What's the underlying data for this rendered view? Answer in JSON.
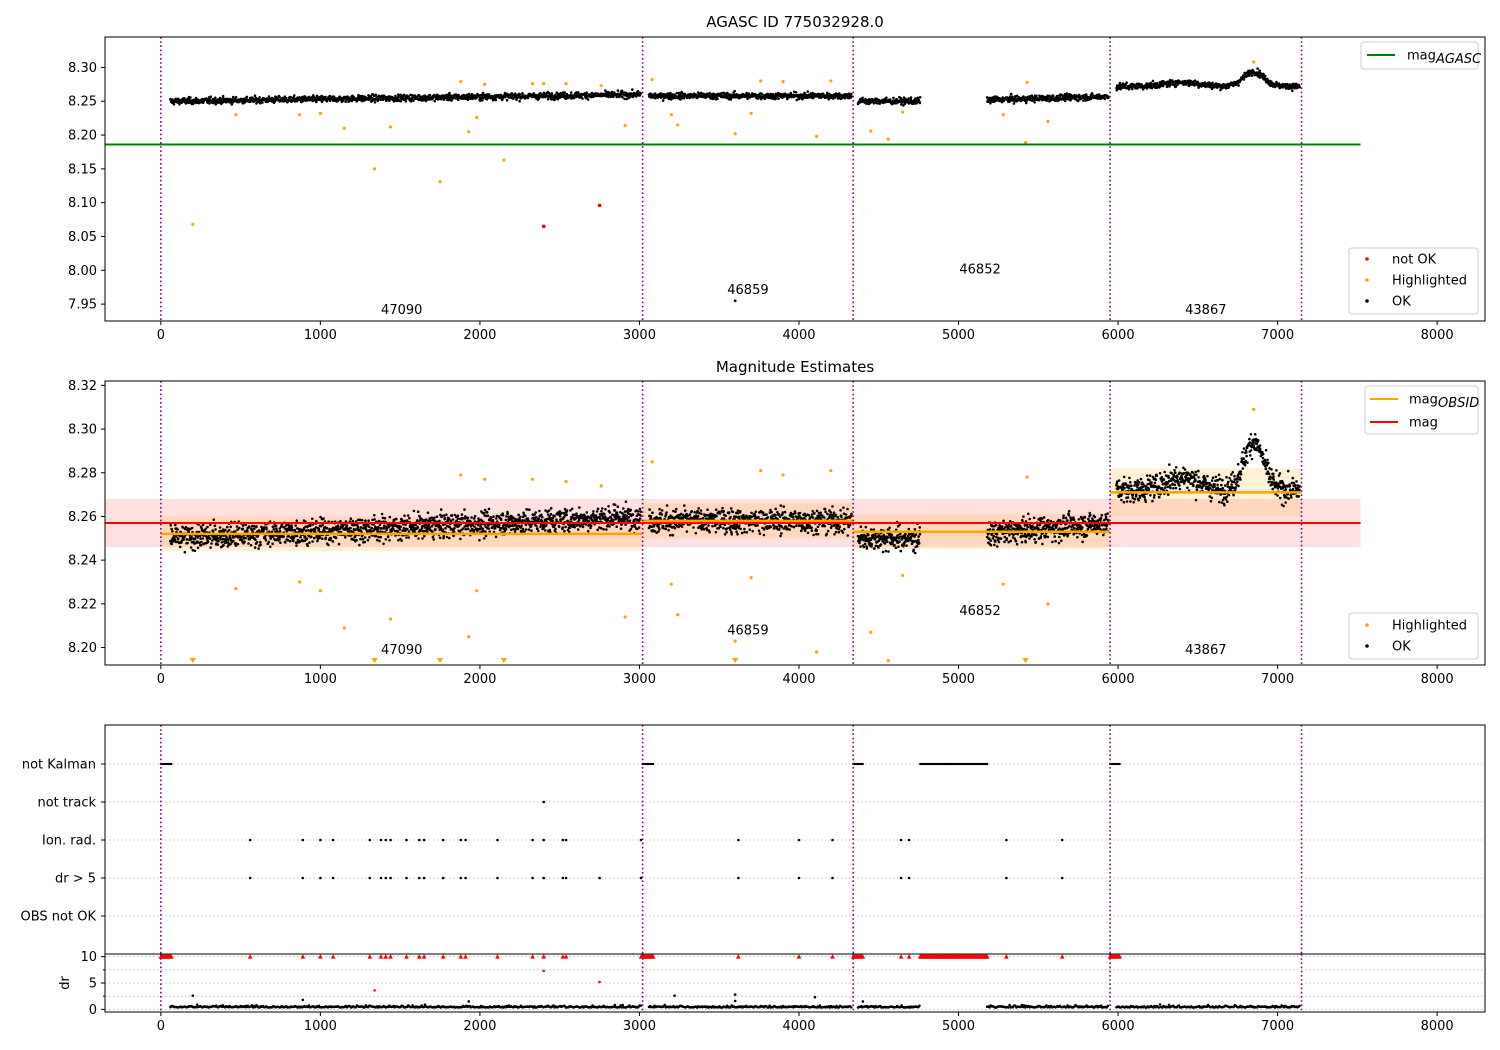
{
  "chart_data": [
    {
      "type": "scatter",
      "title": "AGASC ID 775032928.0",
      "xlim": [
        -350,
        8300
      ],
      "ylim": [
        7.925,
        8.345
      ],
      "xticks": [
        0,
        1000,
        2000,
        3000,
        4000,
        5000,
        6000,
        7000,
        8000
      ],
      "yticks": [
        7.95,
        8.0,
        8.05,
        8.1,
        8.15,
        8.2,
        8.25,
        8.3
      ],
      "grid": false,
      "obsid_boundaries": [
        0,
        3020,
        4340,
        5950,
        7150
      ],
      "obsid_labels": [
        {
          "label": "47090",
          "x": 1510,
          "y": 7.935
        },
        {
          "label": "46859",
          "x": 3680,
          "y": 7.965
        },
        {
          "label": "46852",
          "x": 5135,
          "y": 7.995
        },
        {
          "label": "43867",
          "x": 6550,
          "y": 7.935
        }
      ],
      "segments": [
        {
          "start": 60,
          "end": 3010,
          "base": 8.25,
          "slope": 0.01,
          "noise": 0.006
        },
        {
          "start": 3060,
          "end": 4330,
          "base": 8.258,
          "slope": 0.0,
          "noise": 0.006
        },
        {
          "start": 4370,
          "end": 4760,
          "base": 8.25,
          "slope": 0.0,
          "noise": 0.006
        },
        {
          "start": 5180,
          "end": 5940,
          "base": 8.252,
          "slope": 0.005,
          "noise": 0.006
        },
        {
          "start": 5990,
          "end": 7140,
          "base": 8.272,
          "slope": 0.0,
          "noise": 0.006
        }
      ],
      "hlines": [
        {
          "name": "mag_AGASC",
          "y": 8.186,
          "x0": -350,
          "x1": 7520,
          "color": "#008000"
        }
      ],
      "highlighted": [
        [
          200,
          8.068
        ],
        [
          470,
          8.23
        ],
        [
          870,
          8.23
        ],
        [
          1000,
          8.232
        ],
        [
          1150,
          8.21
        ],
        [
          1340,
          8.15
        ],
        [
          1440,
          8.212
        ],
        [
          1750,
          8.131
        ],
        [
          1880,
          8.279
        ],
        [
          1930,
          8.205
        ],
        [
          1980,
          8.226
        ],
        [
          2030,
          8.275
        ],
        [
          2150,
          8.163
        ],
        [
          2330,
          8.276
        ],
        [
          2400,
          8.276
        ],
        [
          2540,
          8.276
        ],
        [
          2760,
          8.273
        ],
        [
          2910,
          8.214
        ],
        [
          3080,
          8.282
        ],
        [
          3200,
          8.23
        ],
        [
          3240,
          8.215
        ],
        [
          3600,
          8.202
        ],
        [
          3700,
          8.232
        ],
        [
          3760,
          8.28
        ],
        [
          3900,
          8.279
        ],
        [
          4110,
          8.198
        ],
        [
          4200,
          8.28
        ],
        [
          4450,
          8.206
        ],
        [
          4560,
          8.194
        ],
        [
          4650,
          8.234
        ],
        [
          5280,
          8.23
        ],
        [
          5420,
          8.189
        ],
        [
          5430,
          8.278
        ],
        [
          5560,
          8.22
        ],
        [
          6850,
          8.308
        ]
      ],
      "not_ok": [
        [
          2400,
          8.065
        ],
        [
          2750,
          8.096
        ]
      ],
      "ok_extra": [
        [
          3600,
          7.955
        ]
      ],
      "legend_top": [
        {
          "label": "mag",
          "sub": "AGASC",
          "color": "#008000"
        }
      ],
      "legend_bottom": [
        {
          "label": "not OK",
          "color": "#ff0000"
        },
        {
          "label": "Highlighted",
          "color": "#ffa500"
        },
        {
          "label": "OK",
          "color": "#000000"
        }
      ]
    },
    {
      "type": "scatter",
      "title": "Magnitude Estimates",
      "xlim": [
        -350,
        8300
      ],
      "ylim": [
        8.192,
        8.322
      ],
      "xticks": [
        0,
        1000,
        2000,
        3000,
        4000,
        5000,
        6000,
        7000,
        8000
      ],
      "yticks": [
        8.2,
        8.22,
        8.24,
        8.26,
        8.28,
        8.3,
        8.32
      ],
      "grid": false,
      "obsid_boundaries": [
        0,
        3020,
        4340,
        5950,
        7150
      ],
      "obsid_labels": [
        {
          "label": "47090",
          "x": 1510,
          "y": 8.197
        },
        {
          "label": "46859",
          "x": 3680,
          "y": 8.206
        },
        {
          "label": "46852",
          "x": 5135,
          "y": 8.215
        },
        {
          "label": "43867",
          "x": 6550,
          "y": 8.197
        }
      ],
      "segments": [
        {
          "start": 60,
          "end": 3010,
          "base": 8.25,
          "slope": 0.01,
          "noise": 0.006
        },
        {
          "start": 3060,
          "end": 4330,
          "base": 8.258,
          "slope": 0.0,
          "noise": 0.006
        },
        {
          "start": 4370,
          "end": 4760,
          "base": 8.25,
          "slope": 0.0,
          "noise": 0.006
        },
        {
          "start": 5180,
          "end": 5940,
          "base": 8.252,
          "slope": 0.005,
          "noise": 0.006
        },
        {
          "start": 5990,
          "end": 7140,
          "base": 8.272,
          "slope": 0.0,
          "noise": 0.006
        }
      ],
      "mag_band": {
        "name": "mag",
        "y": 8.257,
        "lo": 8.246,
        "hi": 8.268,
        "x0": -350,
        "x1": 7520,
        "color": "#ff0000"
      },
      "obsid_mag": [
        {
          "x0": 0,
          "x1": 3020,
          "y": 8.252,
          "lo": 8.244,
          "hi": 8.26
        },
        {
          "x0": 3020,
          "x1": 4340,
          "y": 8.258,
          "lo": 8.25,
          "hi": 8.266
        },
        {
          "x0": 4340,
          "x1": 5950,
          "y": 8.253,
          "lo": 8.245,
          "hi": 8.261
        },
        {
          "x0": 5950,
          "x1": 7150,
          "y": 8.271,
          "lo": 8.26,
          "hi": 8.282
        }
      ],
      "highlighted": [
        [
          470,
          8.227
        ],
        [
          870,
          8.23
        ],
        [
          1000,
          8.226
        ],
        [
          1150,
          8.209
        ],
        [
          1440,
          8.213
        ],
        [
          1880,
          8.279
        ],
        [
          1930,
          8.205
        ],
        [
          1980,
          8.226
        ],
        [
          2030,
          8.277
        ],
        [
          2330,
          8.277
        ],
        [
          2540,
          8.276
        ],
        [
          2760,
          8.274
        ],
        [
          2910,
          8.214
        ],
        [
          3080,
          8.285
        ],
        [
          3200,
          8.229
        ],
        [
          3240,
          8.215
        ],
        [
          3600,
          8.203
        ],
        [
          3700,
          8.232
        ],
        [
          3760,
          8.281
        ],
        [
          3900,
          8.279
        ],
        [
          4110,
          8.198
        ],
        [
          4200,
          8.281
        ],
        [
          4450,
          8.207
        ],
        [
          4560,
          8.194
        ],
        [
          4650,
          8.233
        ],
        [
          5280,
          8.229
        ],
        [
          5430,
          8.278
        ],
        [
          5560,
          8.22
        ],
        [
          6850,
          8.309
        ]
      ],
      "below_axis": [
        200,
        1340,
        1750,
        2150,
        3600,
        5420
      ],
      "legend_top": [
        {
          "label": "mag",
          "sub": "OBSID",
          "color": "#ffa500"
        },
        {
          "label": "mag",
          "sub": "",
          "color": "#ff0000"
        }
      ],
      "legend_bottom": [
        {
          "label": "Highlighted",
          "color": "#ffa500"
        },
        {
          "label": "OK",
          "color": "#000000"
        }
      ]
    },
    {
      "type": "scatter",
      "xlim": [
        -350,
        8300
      ],
      "categories": [
        "not Kalman",
        "not track",
        "Ion. rad.",
        "dr > 5",
        "OBS not OK"
      ],
      "grid": true,
      "obsid_boundaries": [
        0,
        3020,
        4340,
        5950,
        7150
      ],
      "flag_points": {
        "not Kalman": {
          "ranges": [
            [
              0,
              70
            ],
            [
              3020,
              3090
            ],
            [
              4340,
              4400
            ],
            [
              4760,
              5180
            ],
            [
              5950,
              6010
            ]
          ],
          "points": []
        },
        "not track": {
          "ranges": [],
          "points": [
            2400
          ]
        },
        "Ion. rad.": {
          "ranges": [],
          "points": [
            560,
            890,
            1000,
            1080,
            1310,
            1380,
            1410,
            1440,
            1540,
            1620,
            1650,
            1770,
            1880,
            1910,
            2110,
            2330,
            2400,
            2520,
            2540,
            3010,
            3620,
            4000,
            4210,
            4640,
            4690,
            5300,
            5650
          ]
        },
        "dr > 5": {
          "ranges": [],
          "points": [
            560,
            890,
            1000,
            1080,
            1310,
            1380,
            1410,
            1440,
            1540,
            1620,
            1650,
            1770,
            1880,
            1910,
            2110,
            2330,
            2400,
            2520,
            2540,
            2750,
            3010,
            3620,
            4000,
            4210,
            4640,
            4690,
            5300,
            5650
          ]
        },
        "OBS not OK": {
          "ranges": [],
          "points": []
        }
      }
    },
    {
      "type": "scatter",
      "xlim": [
        -350,
        8300
      ],
      "ylim": [
        -0.5,
        10.5
      ],
      "yticks": [
        0,
        5,
        10
      ],
      "ylabel": "dr",
      "grid": true,
      "clip_value": 10,
      "segments": [
        {
          "start": 60,
          "end": 3010
        },
        {
          "start": 3060,
          "end": 4330
        },
        {
          "start": 4370,
          "end": 4760
        },
        {
          "start": 5180,
          "end": 5940
        },
        {
          "start": 5990,
          "end": 7140
        }
      ],
      "clipped_ranges": [
        [
          0,
          70
        ],
        [
          3020,
          3090
        ],
        [
          4340,
          4400
        ],
        [
          4760,
          5180
        ],
        [
          5950,
          6010
        ]
      ],
      "clipped_points": [
        560,
        890,
        1000,
        1080,
        1310,
        1380,
        1410,
        1440,
        1540,
        1620,
        1650,
        1770,
        1880,
        1910,
        2110,
        2330,
        2400,
        2520,
        2540,
        3010,
        3620,
        4000,
        4210,
        4640,
        4690,
        5300,
        5650
      ],
      "dr_spikes": [
        [
          200,
          2.6
        ],
        [
          890,
          1.8
        ],
        [
          1340,
          3.6
        ],
        [
          1930,
          1.5
        ],
        [
          2400,
          7.3
        ],
        [
          2750,
          5.2
        ],
        [
          3220,
          2.6
        ],
        [
          3600,
          2.8
        ],
        [
          3600,
          1.6
        ],
        [
          4100,
          2.3
        ],
        [
          4400,
          1.5
        ]
      ]
    }
  ]
}
